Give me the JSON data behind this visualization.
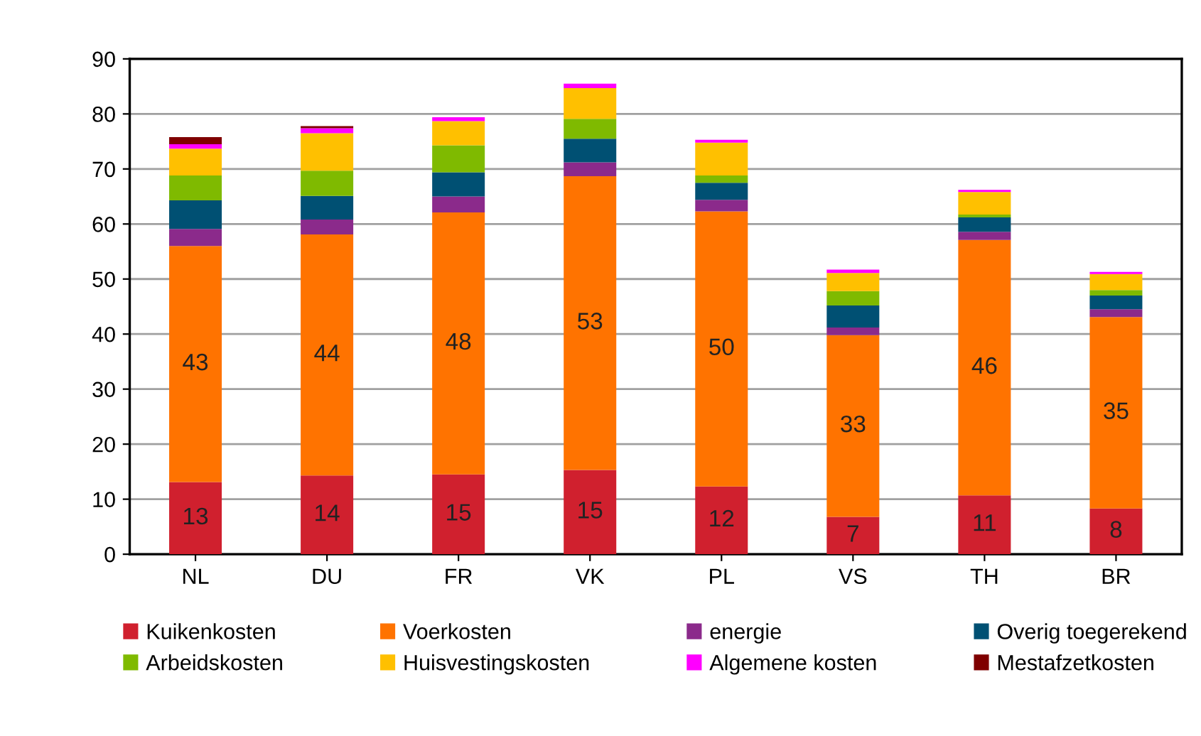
{
  "chart_data": {
    "type": "bar",
    "stacked": true,
    "categories": [
      "NL",
      "DU",
      "FR",
      "VK",
      "PL",
      "VS",
      "TH",
      "BR"
    ],
    "series": [
      {
        "name": "Kuikenkosten",
        "color": "#d0202e",
        "values": [
          13.1,
          14.3,
          14.5,
          15.3,
          12.3,
          6.8,
          10.7,
          8.3
        ],
        "value_labels": [
          "13",
          "14",
          "15",
          "15",
          "12",
          "7",
          "11",
          "8"
        ]
      },
      {
        "name": "Voerkosten",
        "color": "#ff7300",
        "values": [
          42.9,
          43.8,
          47.6,
          53.4,
          50.0,
          33.0,
          46.4,
          34.8
        ],
        "value_labels": [
          "43",
          "44",
          "48",
          "53",
          "50",
          "33",
          "46",
          "35"
        ]
      },
      {
        "name": "energie",
        "color": "#8b2a8b",
        "values": [
          3.1,
          2.7,
          2.9,
          2.5,
          2.1,
          1.4,
          1.5,
          1.4
        ]
      },
      {
        "name": "Overig toegerekend",
        "color": "#005073",
        "values": [
          5.2,
          4.3,
          4.4,
          4.3,
          3.1,
          4.0,
          2.6,
          2.5
        ]
      },
      {
        "name": "Arbeidskosten",
        "color": "#7fba00",
        "values": [
          4.5,
          4.6,
          4.9,
          3.6,
          1.3,
          2.6,
          0.5,
          1.0
        ]
      },
      {
        "name": "Huisvestingskosten",
        "color": "#ffc000",
        "values": [
          4.9,
          6.8,
          4.4,
          5.6,
          6.0,
          3.3,
          4.1,
          2.9
        ]
      },
      {
        "name": "Algemene kosten",
        "color": "#ff00ff",
        "values": [
          0.8,
          0.9,
          0.7,
          0.8,
          0.5,
          0.6,
          0.4,
          0.4
        ]
      },
      {
        "name": "Mestafzetkosten",
        "color": "#7f0000",
        "values": [
          1.3,
          0.4,
          0,
          0,
          0,
          0,
          0,
          0
        ]
      }
    ],
    "ylim": [
      0,
      90
    ],
    "yticks": [
      0,
      10,
      20,
      30,
      40,
      50,
      60,
      70,
      80,
      90
    ],
    "grid": "y",
    "legend": "bottom"
  }
}
